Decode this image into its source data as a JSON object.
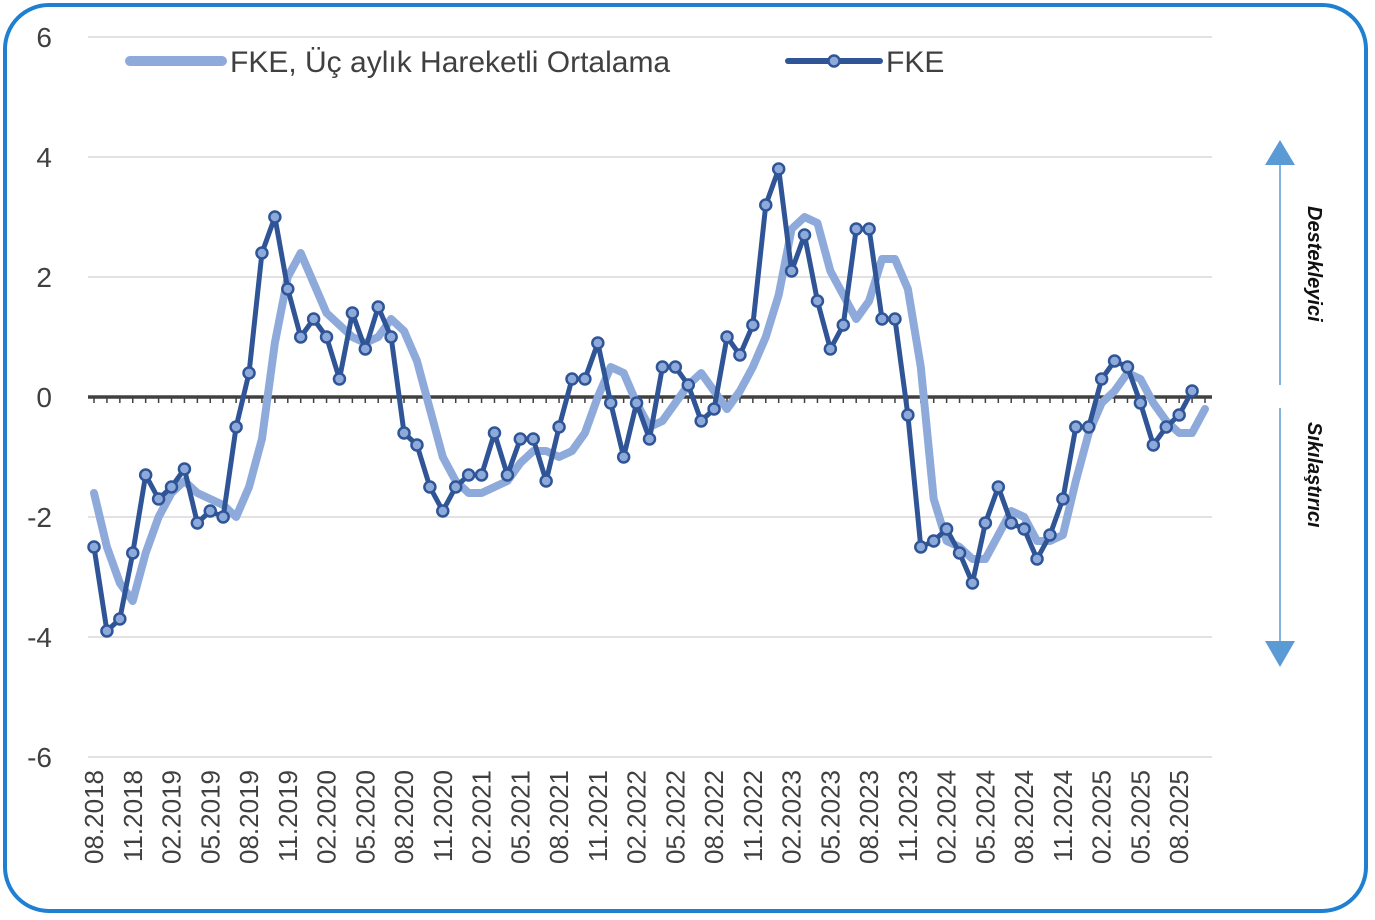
{
  "chart_data": {
    "type": "line",
    "title": "",
    "xlabel": "",
    "ylabel": "",
    "ylim": [
      -6,
      6
    ],
    "yticks": [
      6,
      4,
      2,
      0,
      -2,
      -4,
      -6
    ],
    "grid": true,
    "legend_position": "top",
    "x_tick_labels": [
      "08.2018",
      "11.2018",
      "02.2019",
      "05.2019",
      "08.2019",
      "11.2019",
      "02.2020",
      "05.2020",
      "08.2020",
      "11.2020",
      "02.2021",
      "05.2021",
      "08.2021",
      "11.2021",
      "02.2022",
      "05.2022",
      "08.2022",
      "11.2022",
      "02.2023",
      "05.2023",
      "08.2023",
      "11.2023",
      "02.2024",
      "05.2024",
      "08.2024",
      "11.2024",
      "02.2025",
      "05.2025",
      "08.2025"
    ],
    "series": [
      {
        "name": "FKE, Üç aylık Hareketli Ortalama",
        "color": "#8eaadb",
        "values": [
          -1.6,
          -2.5,
          -3.1,
          -3.4,
          -2.6,
          -2.0,
          -1.6,
          -1.4,
          -1.6,
          -1.7,
          -1.8,
          -2.0,
          -1.5,
          -0.7,
          0.9,
          2.0,
          2.4,
          1.9,
          1.4,
          1.2,
          1.0,
          0.9,
          1.0,
          1.3,
          1.1,
          0.6,
          -0.2,
          -1.0,
          -1.4,
          -1.6,
          -1.6,
          -1.5,
          -1.4,
          -1.1,
          -0.9,
          -0.9,
          -1.0,
          -0.9,
          -0.6,
          0.0,
          0.5,
          0.4,
          -0.1,
          -0.5,
          -0.4,
          -0.1,
          0.2,
          0.4,
          0.1,
          -0.2,
          0.1,
          0.5,
          1.0,
          1.7,
          2.8,
          3.0,
          2.9,
          2.1,
          1.7,
          1.3,
          1.6,
          2.3,
          2.3,
          1.8,
          0.5,
          -1.7,
          -2.4,
          -2.5,
          -2.7,
          -2.7,
          -2.3,
          -1.9,
          -2.0,
          -2.4,
          -2.4,
          -2.3,
          -1.4,
          -0.6,
          -0.1,
          0.1,
          0.4,
          0.3,
          -0.1,
          -0.4,
          -0.6,
          -0.6,
          -0.2
        ]
      },
      {
        "name": "FKE",
        "color": "#2f5597",
        "values": [
          -2.5,
          -3.9,
          -3.7,
          -2.6,
          -1.3,
          -1.7,
          -1.5,
          -1.2,
          -2.1,
          -1.9,
          -2.0,
          -0.5,
          0.4,
          2.4,
          3.0,
          1.8,
          1.0,
          1.3,
          1.0,
          0.3,
          1.4,
          0.8,
          1.5,
          1.0,
          -0.6,
          -0.8,
          -1.5,
          -1.9,
          -1.5,
          -1.3,
          -1.3,
          -0.6,
          -1.3,
          -0.7,
          -0.7,
          -1.4,
          -0.5,
          0.3,
          0.3,
          0.9,
          -0.1,
          -1.0,
          -0.1,
          -0.7,
          0.5,
          0.5,
          0.2,
          -0.4,
          -0.2,
          1.0,
          0.7,
          1.2,
          3.2,
          3.8,
          2.1,
          2.7,
          1.6,
          0.8,
          1.2,
          2.8,
          2.8,
          1.3,
          1.3,
          -0.3,
          -2.5,
          -2.4,
          -2.2,
          -2.6,
          -3.1,
          -2.1,
          -1.5,
          -2.1,
          -2.2,
          -2.7,
          -2.3,
          -1.7,
          -0.5,
          -0.5,
          0.3,
          0.6,
          0.5,
          -0.1,
          -0.8,
          -0.5,
          -0.3,
          0.1
        ]
      }
    ]
  },
  "side_labels": {
    "upper": "Destekleyici",
    "lower": "Sıkılaştırıcı"
  },
  "arrows": {
    "color": "#5b9bd5"
  }
}
